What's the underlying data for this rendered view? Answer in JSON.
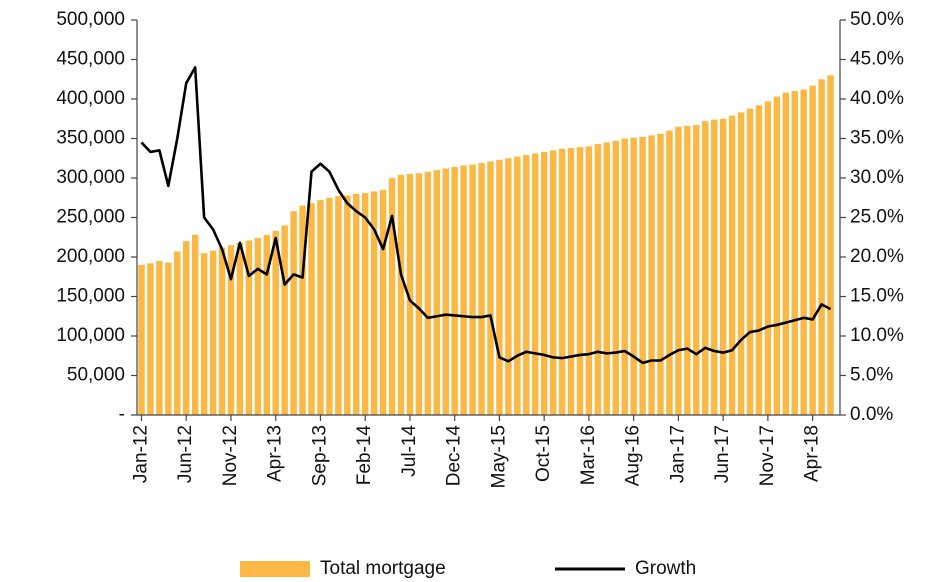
{
  "chart_data": {
    "type": "bar",
    "categories": [
      "Jan-12",
      null,
      null,
      null,
      null,
      "Jun-12",
      null,
      null,
      null,
      null,
      "Nov-12",
      null,
      null,
      null,
      null,
      "Apr-13",
      null,
      null,
      null,
      null,
      "Sep-13",
      null,
      null,
      null,
      null,
      "Feb-14",
      null,
      null,
      null,
      null,
      "Jul-14",
      null,
      null,
      null,
      null,
      "Dec-14",
      null,
      null,
      null,
      null,
      "May-15",
      null,
      null,
      null,
      null,
      "Oct-15",
      null,
      null,
      null,
      null,
      "Mar-16",
      null,
      null,
      null,
      null,
      "Aug-16",
      null,
      null,
      null,
      null,
      "Jan-17",
      null,
      null,
      null,
      null,
      "Jun-17",
      null,
      null,
      null,
      null,
      "Nov-17",
      null,
      null,
      null,
      null,
      "Apr-18",
      null,
      null
    ],
    "series": [
      {
        "name": "Total mortgage",
        "type": "bar",
        "color": "#fbb844",
        "values": [
          190000,
          192000,
          195000,
          193000,
          207000,
          220000,
          228000,
          205000,
          208000,
          212000,
          215000,
          218000,
          221000,
          224000,
          228000,
          233000,
          240000,
          258000,
          265000,
          268000,
          272000,
          275000,
          277000,
          278000,
          280000,
          281000,
          283000,
          285000,
          300000,
          304000,
          305000,
          306000,
          308000,
          310000,
          312000,
          314000,
          316000,
          317000,
          319000,
          321000,
          323000,
          325000,
          327000,
          329000,
          331000,
          333000,
          335000,
          337000,
          338000,
          339000,
          340000,
          343000,
          345000,
          347000,
          350000,
          351000,
          352000,
          354000,
          356000,
          360000,
          365000,
          366000,
          367000,
          372000,
          374000,
          375000,
          379000,
          383000,
          388000,
          392000,
          397000,
          403000,
          408000,
          410000,
          412000,
          417000,
          425000,
          430000
        ]
      },
      {
        "name": "Growth",
        "type": "line",
        "axis": "y2",
        "color": "#000000",
        "values": [
          34.5,
          33.3,
          33.5,
          29.0,
          35.0,
          42.0,
          44.0,
          25.0,
          23.5,
          21.0,
          17.2,
          21.8,
          17.6,
          18.5,
          17.8,
          22.4,
          16.5,
          17.8,
          17.4,
          30.8,
          31.8,
          30.8,
          28.5,
          26.8,
          25.8,
          25.0,
          23.5,
          21.0,
          25.2,
          17.8,
          14.5,
          13.5,
          12.3,
          12.5,
          12.7,
          12.6,
          12.5,
          12.4,
          12.4,
          12.6,
          7.3,
          6.8,
          7.5,
          8.0,
          7.8,
          7.6,
          7.3,
          7.2,
          7.4,
          7.6,
          7.7,
          8.0,
          7.8,
          7.9,
          8.1,
          7.4,
          6.6,
          6.9,
          6.9,
          7.6,
          8.2,
          8.4,
          7.7,
          8.5,
          8.1,
          7.9,
          8.2,
          9.5,
          10.5,
          10.7,
          11.2,
          11.4,
          11.7,
          12.0,
          12.3,
          12.1,
          14.0,
          13.4
        ]
      }
    ],
    "ylim": [
      0,
      500000
    ],
    "yticks": [
      {
        "value": 0,
        "label": "-"
      },
      {
        "value": 50000,
        "label": "50,000"
      },
      {
        "value": 100000,
        "label": "100,000"
      },
      {
        "value": 150000,
        "label": "150,000"
      },
      {
        "value": 200000,
        "label": "200,000"
      },
      {
        "value": 250000,
        "label": "250,000"
      },
      {
        "value": 300000,
        "label": "300,000"
      },
      {
        "value": 350000,
        "label": "350,000"
      },
      {
        "value": 400000,
        "label": "400,000"
      },
      {
        "value": 450000,
        "label": "450,000"
      },
      {
        "value": 500000,
        "label": "500,000"
      }
    ],
    "y2lim": [
      0,
      50
    ],
    "y2ticks": [
      {
        "value": 0,
        "label": "0.0%"
      },
      {
        "value": 5,
        "label": "5.0%"
      },
      {
        "value": 10,
        "label": "10.0%"
      },
      {
        "value": 15,
        "label": "15.0%"
      },
      {
        "value": 20,
        "label": "20.0%"
      },
      {
        "value": 25,
        "label": "25.0%"
      },
      {
        "value": 30,
        "label": "30.0%"
      },
      {
        "value": 35,
        "label": "35.0%"
      },
      {
        "value": 40,
        "label": "40.0%"
      },
      {
        "value": 45,
        "label": "45.0%"
      },
      {
        "value": 50,
        "label": "50.0%"
      }
    ],
    "legend": "bottom"
  }
}
